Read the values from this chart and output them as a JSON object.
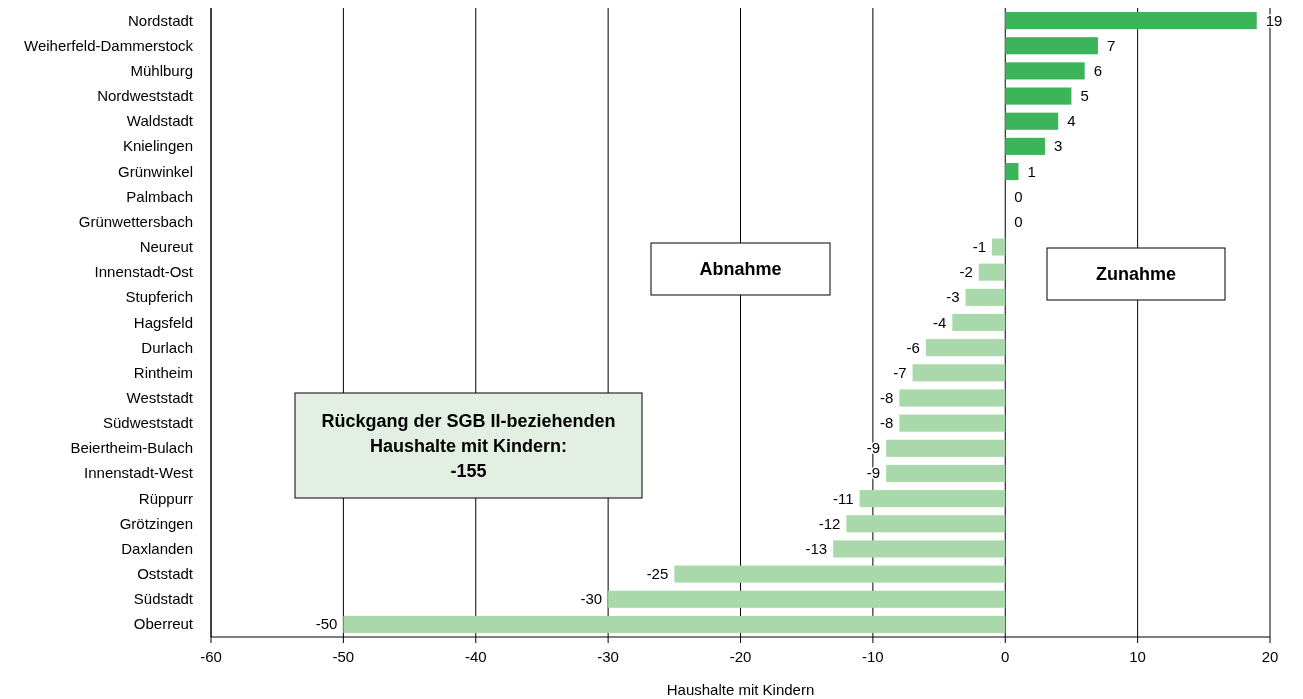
{
  "chart_data": {
    "type": "bar",
    "orientation": "horizontal",
    "xlabel": "Haushalte mit Kindern",
    "categories": [
      "Nordstadt",
      "Weiherfeld-Dammerstock",
      "Mühlburg",
      "Nordweststadt",
      "Waldstadt",
      "Knielingen",
      "Grünwinkel",
      "Palmbach",
      "Grünwettersbach",
      "Neureut",
      "Innenstadt-Ost",
      "Stupferich",
      "Hagsfeld",
      "Durlach",
      "Rintheim",
      "Weststadt",
      "Südweststadt",
      "Beiertheim-Bulach",
      "Innenstadt-West",
      "Rüppurr",
      "Grötzingen",
      "Daxlanden",
      "Oststadt",
      "Südstadt",
      "Oberreut"
    ],
    "values": [
      19,
      7,
      6,
      5,
      4,
      3,
      1,
      0,
      0,
      -1,
      -2,
      -3,
      -4,
      -6,
      -7,
      -8,
      -8,
      -9,
      -9,
      -11,
      -12,
      -13,
      -25,
      -30,
      -50
    ],
    "colors": [
      "#3cb55a",
      "#3cb55a",
      "#3cb55a",
      "#3cb55a",
      "#3cb55a",
      "#3cb55a",
      "#3cb55a",
      "#3cb55a",
      "#3cb55a",
      "#a9d9aa",
      "#a9d9aa",
      "#a9d9aa",
      "#a9d9aa",
      "#a9d9aa",
      "#a9d9aa",
      "#a9d9aa",
      "#a9d9aa",
      "#a9d9aa",
      "#a9d9aa",
      "#a9d9aa",
      "#a9d9aa",
      "#a9d9aa",
      "#a9d9aa",
      "#a9d9aa",
      "#a9d9aa"
    ],
    "xlim": [
      -60,
      20
    ],
    "xticks": [
      -60,
      -50,
      -40,
      -30,
      -20,
      -10,
      0,
      10,
      20
    ],
    "grid": "x",
    "data_labels": true,
    "annotations": [
      "Abnahme",
      "Zunahme",
      "Rückgang der SGB II-beziehenden Haushalte mit Kindern: -155"
    ]
  }
}
